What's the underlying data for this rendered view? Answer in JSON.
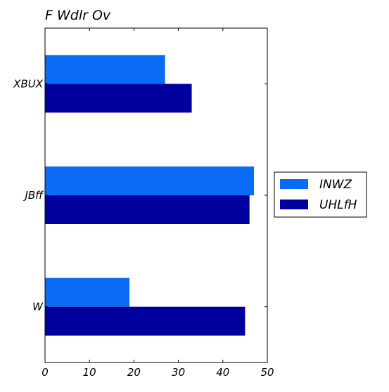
{
  "chart_data": {
    "type": "bar",
    "orientation": "horizontal",
    "title": "F Wdlr Ov",
    "xlabel": "",
    "ylabel": "",
    "categories": [
      "XBUX",
      "JBff",
      "W"
    ],
    "series": [
      {
        "name": "INWZ",
        "color": "#0a6cf6",
        "values": [
          27,
          47,
          19
        ]
      },
      {
        "name": "UHLfH",
        "color": "#00009e",
        "values": [
          33,
          46,
          45
        ]
      }
    ],
    "xlim": [
      0,
      50
    ],
    "xticks": [
      "0",
      "10",
      "20",
      "30",
      "40",
      "50"
    ],
    "grid": false,
    "legend_position": "right"
  }
}
